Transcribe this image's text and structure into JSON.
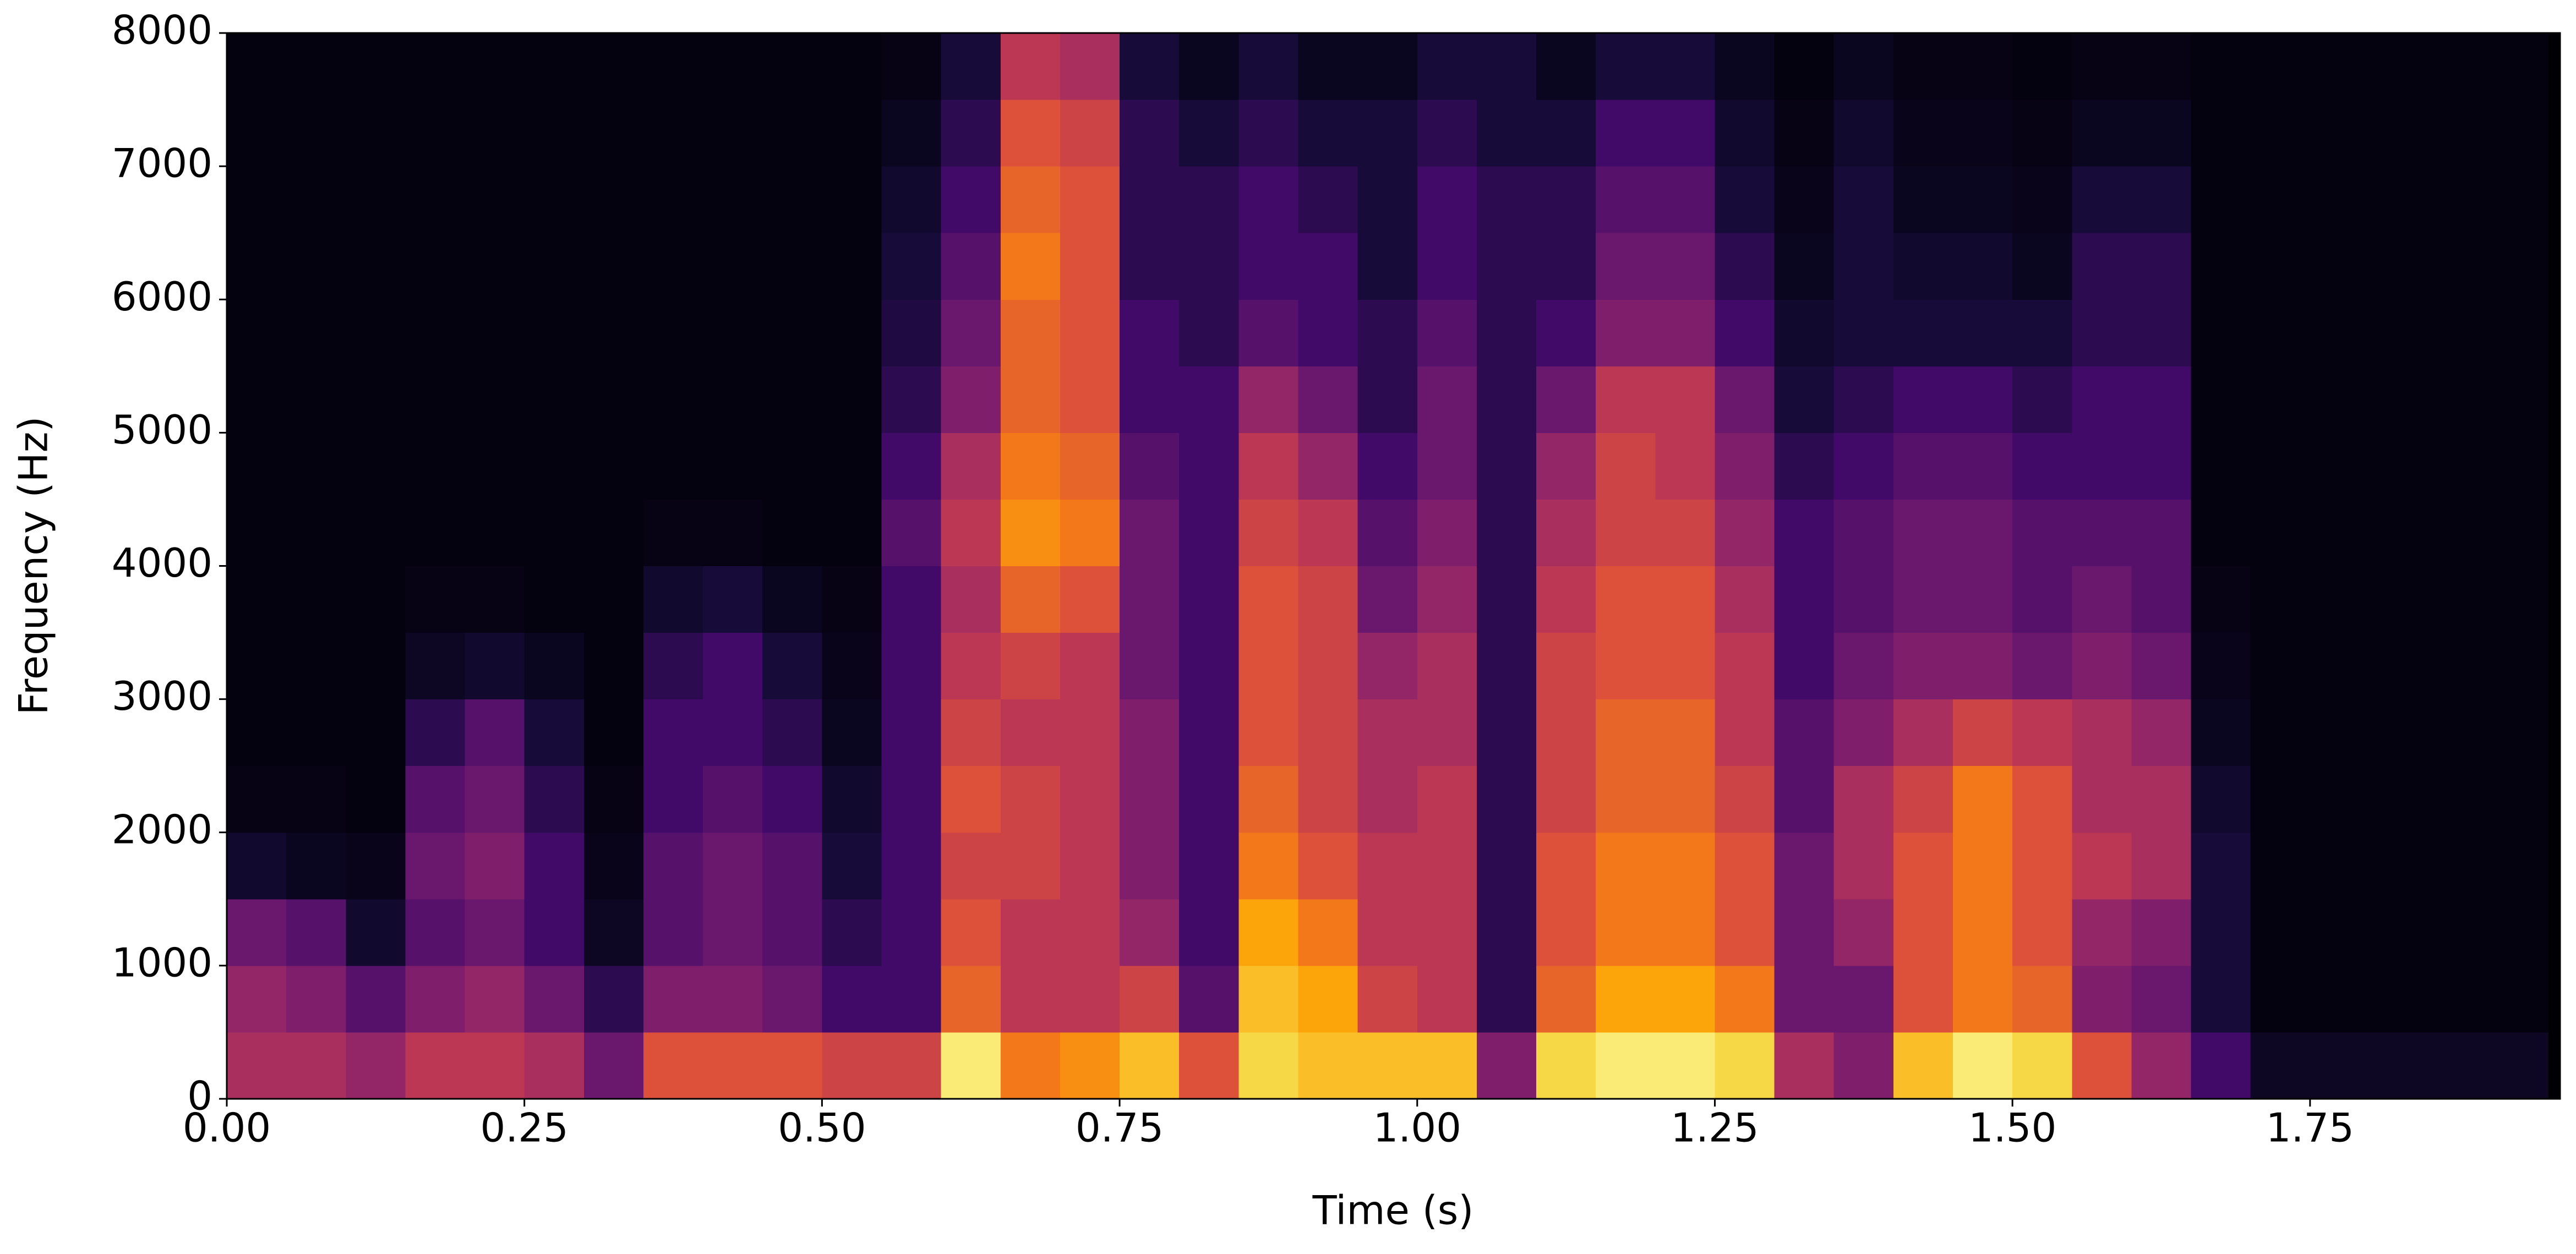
{
  "chart_data": {
    "type": "heatmap",
    "xlabel": "Time (s)",
    "ylabel": "Frequency (Hz)",
    "colormap": "inferno",
    "xlim": [
      0,
      1.96
    ],
    "ylim": [
      0,
      8000
    ],
    "xticks": [
      {
        "value": 0,
        "label": "0.00"
      },
      {
        "value": 0.25,
        "label": "0.25"
      },
      {
        "value": 0.5,
        "label": "0.50"
      },
      {
        "value": 0.75,
        "label": "0.75"
      },
      {
        "value": 1,
        "label": "1.00"
      },
      {
        "value": 1.25,
        "label": "1.25"
      },
      {
        "value": 1.5,
        "label": "1.50"
      },
      {
        "value": 1.75,
        "label": "1.75"
      }
    ],
    "yticks": [
      0,
      1000,
      2000,
      3000,
      4000,
      5000,
      6000,
      7000,
      8000
    ],
    "xbins": [
      0,
      0.05,
      0.1,
      0.15,
      0.2,
      0.25,
      0.3,
      0.35,
      0.4,
      0.45,
      0.5,
      0.55,
      0.6,
      0.65,
      0.7,
      0.75,
      0.8,
      0.85,
      0.9,
      0.95,
      1,
      1.05,
      1.1,
      1.15,
      1.2,
      1.25,
      1.3,
      1.35,
      1.4,
      1.45,
      1.5,
      1.55,
      1.6,
      1.65,
      1.7,
      1.75,
      1.8,
      1.85,
      1.9,
      1.95
    ],
    "ybins": [
      0,
      500,
      1000,
      1500,
      2000,
      2500,
      3000,
      3500,
      4000,
      4500,
      5000,
      5500,
      6000,
      6500,
      7000,
      7500,
      8000
    ],
    "z": [
      [
        0.45,
        0.4,
        0.3,
        0.08,
        0.03,
        0.02,
        0.02,
        0.02,
        0.02,
        0.02,
        0.02,
        0.02,
        0.02,
        0.02,
        0.02,
        0.02
      ],
      [
        0.45,
        0.35,
        0.25,
        0.05,
        0.03,
        0.02,
        0.02,
        0.02,
        0.02,
        0.02,
        0.02,
        0.02,
        0.02,
        0.02,
        0.02,
        0.02
      ],
      [
        0.4,
        0.25,
        0.08,
        0.04,
        0.02,
        0.02,
        0.02,
        0.02,
        0.02,
        0.02,
        0.02,
        0.02,
        0.02,
        0.02,
        0.02,
        0.02
      ],
      [
        0.5,
        0.35,
        0.25,
        0.3,
        0.25,
        0.15,
        0.06,
        0.03,
        0.02,
        0.02,
        0.02,
        0.02,
        0.02,
        0.02,
        0.02,
        0.02
      ],
      [
        0.5,
        0.4,
        0.3,
        0.35,
        0.3,
        0.25,
        0.08,
        0.03,
        0.02,
        0.02,
        0.02,
        0.02,
        0.02,
        0.02,
        0.02,
        0.02
      ],
      [
        0.45,
        0.3,
        0.2,
        0.2,
        0.15,
        0.1,
        0.05,
        0.02,
        0.02,
        0.02,
        0.02,
        0.02,
        0.02,
        0.02,
        0.02,
        0.02
      ],
      [
        0.3,
        0.15,
        0.06,
        0.04,
        0.03,
        0.02,
        0.02,
        0.02,
        0.02,
        0.02,
        0.02,
        0.02,
        0.02,
        0.02,
        0.02,
        0.02
      ],
      [
        0.6,
        0.35,
        0.25,
        0.25,
        0.2,
        0.2,
        0.15,
        0.08,
        0.03,
        0.02,
        0.02,
        0.02,
        0.02,
        0.02,
        0.02,
        0.02
      ],
      [
        0.6,
        0.35,
        0.3,
        0.3,
        0.25,
        0.2,
        0.2,
        0.1,
        0.03,
        0.02,
        0.02,
        0.02,
        0.02,
        0.02,
        0.02,
        0.02
      ],
      [
        0.6,
        0.3,
        0.25,
        0.25,
        0.2,
        0.15,
        0.1,
        0.05,
        0.02,
        0.02,
        0.02,
        0.02,
        0.02,
        0.02,
        0.02,
        0.02
      ],
      [
        0.55,
        0.2,
        0.15,
        0.1,
        0.08,
        0.05,
        0.04,
        0.03,
        0.02,
        0.02,
        0.02,
        0.02,
        0.02,
        0.02,
        0.02,
        0.02
      ],
      [
        0.55,
        0.2,
        0.2,
        0.2,
        0.2,
        0.2,
        0.2,
        0.2,
        0.25,
        0.2,
        0.15,
        0.12,
        0.1,
        0.08,
        0.05,
        0.03
      ],
      [
        0.95,
        0.65,
        0.6,
        0.55,
        0.6,
        0.55,
        0.5,
        0.45,
        0.5,
        0.45,
        0.35,
        0.3,
        0.25,
        0.2,
        0.15,
        0.1
      ],
      [
        0.7,
        0.5,
        0.5,
        0.55,
        0.55,
        0.5,
        0.55,
        0.65,
        0.75,
        0.7,
        0.65,
        0.65,
        0.7,
        0.65,
        0.6,
        0.5
      ],
      [
        0.75,
        0.5,
        0.5,
        0.5,
        0.5,
        0.5,
        0.5,
        0.6,
        0.7,
        0.65,
        0.6,
        0.6,
        0.6,
        0.6,
        0.55,
        0.45
      ],
      [
        0.85,
        0.55,
        0.4,
        0.35,
        0.35,
        0.35,
        0.3,
        0.3,
        0.3,
        0.25,
        0.2,
        0.2,
        0.15,
        0.15,
        0.15,
        0.1
      ],
      [
        0.6,
        0.25,
        0.2,
        0.2,
        0.2,
        0.2,
        0.2,
        0.2,
        0.2,
        0.2,
        0.2,
        0.15,
        0.15,
        0.15,
        0.1,
        0.05
      ],
      [
        0.9,
        0.85,
        0.8,
        0.7,
        0.65,
        0.6,
        0.6,
        0.6,
        0.55,
        0.5,
        0.4,
        0.25,
        0.2,
        0.2,
        0.15,
        0.1
      ],
      [
        0.85,
        0.8,
        0.7,
        0.6,
        0.55,
        0.55,
        0.55,
        0.55,
        0.5,
        0.4,
        0.3,
        0.2,
        0.2,
        0.15,
        0.1,
        0.05
      ],
      [
        0.85,
        0.55,
        0.5,
        0.5,
        0.45,
        0.45,
        0.4,
        0.3,
        0.25,
        0.2,
        0.15,
        0.15,
        0.1,
        0.1,
        0.1,
        0.05
      ],
      [
        0.85,
        0.5,
        0.5,
        0.5,
        0.5,
        0.45,
        0.45,
        0.4,
        0.35,
        0.3,
        0.3,
        0.25,
        0.2,
        0.2,
        0.15,
        0.1
      ],
      [
        0.35,
        0.15,
        0.15,
        0.15,
        0.15,
        0.15,
        0.15,
        0.15,
        0.15,
        0.15,
        0.15,
        0.15,
        0.15,
        0.15,
        0.1,
        0.1
      ],
      [
        0.9,
        0.65,
        0.6,
        0.6,
        0.55,
        0.55,
        0.55,
        0.5,
        0.45,
        0.4,
        0.3,
        0.2,
        0.15,
        0.15,
        0.1,
        0.05
      ],
      [
        0.95,
        0.8,
        0.7,
        0.7,
        0.65,
        0.65,
        0.6,
        0.6,
        0.55,
        0.55,
        0.5,
        0.35,
        0.3,
        0.25,
        0.2,
        0.1
      ],
      [
        0.95,
        0.8,
        0.7,
        0.7,
        0.65,
        0.65,
        0.6,
        0.6,
        0.55,
        0.5,
        0.5,
        0.35,
        0.3,
        0.25,
        0.2,
        0.1
      ],
      [
        0.9,
        0.7,
        0.6,
        0.6,
        0.55,
        0.5,
        0.5,
        0.45,
        0.4,
        0.35,
        0.3,
        0.2,
        0.15,
        0.1,
        0.08,
        0.05
      ],
      [
        0.45,
        0.3,
        0.3,
        0.3,
        0.25,
        0.25,
        0.2,
        0.2,
        0.2,
        0.15,
        0.1,
        0.08,
        0.05,
        0.04,
        0.03,
        0.02
      ],
      [
        0.35,
        0.3,
        0.4,
        0.45,
        0.45,
        0.35,
        0.3,
        0.25,
        0.25,
        0.2,
        0.15,
        0.1,
        0.1,
        0.1,
        0.08,
        0.05
      ],
      [
        0.85,
        0.6,
        0.6,
        0.6,
        0.55,
        0.45,
        0.35,
        0.3,
        0.3,
        0.25,
        0.2,
        0.1,
        0.08,
        0.05,
        0.04,
        0.03
      ],
      [
        0.95,
        0.7,
        0.7,
        0.7,
        0.7,
        0.55,
        0.35,
        0.3,
        0.3,
        0.25,
        0.2,
        0.1,
        0.08,
        0.05,
        0.04,
        0.03
      ],
      [
        0.9,
        0.65,
        0.6,
        0.6,
        0.6,
        0.5,
        0.3,
        0.25,
        0.25,
        0.2,
        0.15,
        0.1,
        0.05,
        0.04,
        0.03,
        0.02
      ],
      [
        0.6,
        0.35,
        0.4,
        0.5,
        0.45,
        0.45,
        0.35,
        0.3,
        0.25,
        0.2,
        0.2,
        0.15,
        0.15,
        0.1,
        0.05,
        0.03
      ],
      [
        0.4,
        0.3,
        0.35,
        0.45,
        0.45,
        0.4,
        0.3,
        0.25,
        0.25,
        0.2,
        0.2,
        0.15,
        0.15,
        0.1,
        0.05,
        0.03
      ],
      [
        0.2,
        0.1,
        0.1,
        0.1,
        0.08,
        0.05,
        0.04,
        0.03,
        0.02,
        0.02,
        0.02,
        0.02,
        0.02,
        0.02,
        0.02,
        0.02
      ],
      [
        0.06,
        0.02,
        0.02,
        0.02,
        0.02,
        0.02,
        0.02,
        0.02,
        0.02,
        0.02,
        0.02,
        0.02,
        0.02,
        0.02,
        0.02,
        0.02
      ],
      [
        0.06,
        0.02,
        0.02,
        0.02,
        0.02,
        0.02,
        0.02,
        0.02,
        0.02,
        0.02,
        0.02,
        0.02,
        0.02,
        0.02,
        0.02,
        0.02
      ],
      [
        0.06,
        0.02,
        0.02,
        0.02,
        0.02,
        0.02,
        0.02,
        0.02,
        0.02,
        0.02,
        0.02,
        0.02,
        0.02,
        0.02,
        0.02,
        0.02
      ],
      [
        0.06,
        0.02,
        0.02,
        0.02,
        0.02,
        0.02,
        0.02,
        0.02,
        0.02,
        0.02,
        0.02,
        0.02,
        0.02,
        0.02,
        0.02,
        0.02
      ],
      [
        0.06,
        0.02,
        0.02,
        0.02,
        0.02,
        0.02,
        0.02,
        0.02,
        0.02,
        0.02,
        0.02,
        0.02,
        0.02,
        0.02,
        0.02,
        0.02
      ]
    ]
  }
}
